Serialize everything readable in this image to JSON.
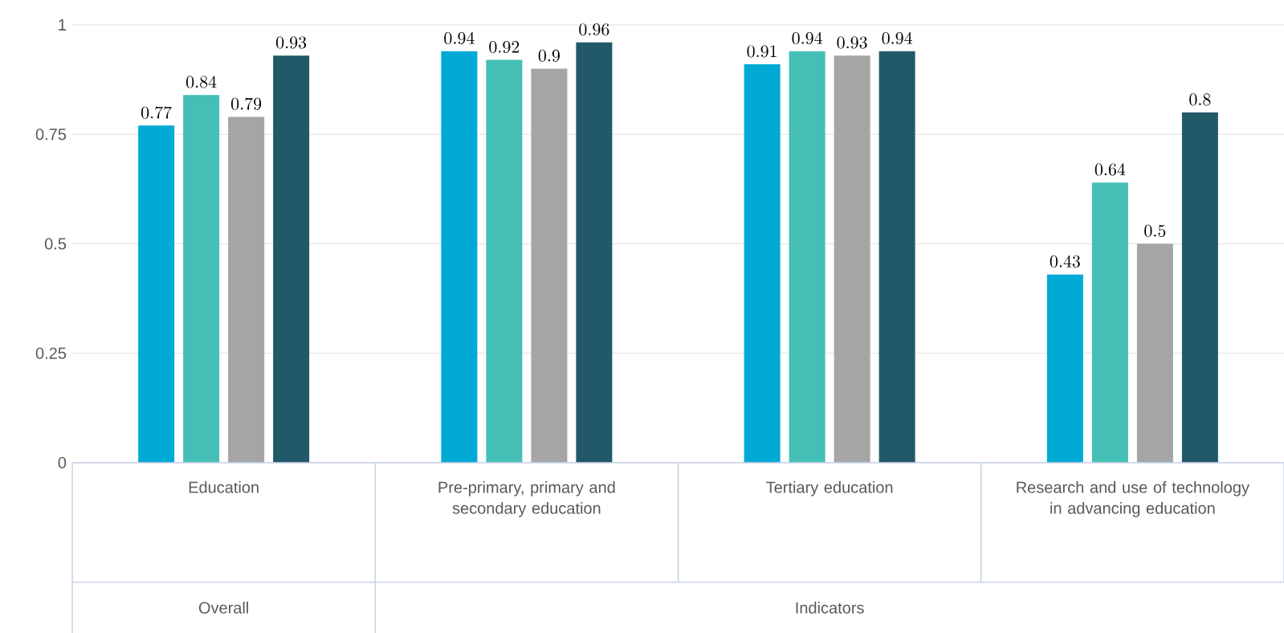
{
  "chart_data": {
    "type": "bar",
    "categories": [
      "Education",
      "Pre-primary, primary and secondary education",
      "Tertiary education",
      "Research and use of technology in advancing education"
    ],
    "series": [
      {
        "color": "#00aad5",
        "values": [
          0.77,
          0.94,
          0.91,
          0.43
        ]
      },
      {
        "color": "#45bfb5",
        "values": [
          0.84,
          0.92,
          0.94,
          0.64
        ]
      },
      {
        "color": "#a5a5a5",
        "values": [
          0.79,
          0.9,
          0.93,
          0.5
        ]
      },
      {
        "color": "#225968",
        "values": [
          0.93,
          0.96,
          0.94,
          0.8
        ]
      }
    ],
    "ylim": [
      0,
      1
    ],
    "yticks": [
      0,
      0.25,
      0.5,
      0.75,
      1
    ],
    "grid": "y",
    "data_labels": true,
    "annotations": [
      "Overall",
      "Indicators"
    ]
  }
}
